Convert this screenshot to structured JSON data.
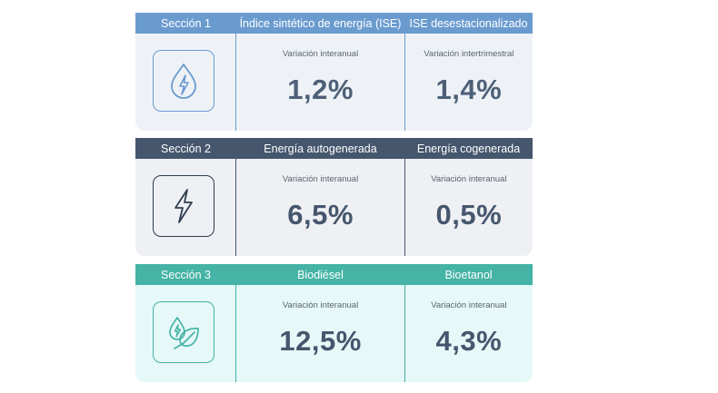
{
  "sections": [
    {
      "title": "Sección 1",
      "icon": "energy-drop-icon",
      "color": "#6a9bcf",
      "columns": [
        {
          "header": "Índice sintético de energía (ISE)",
          "label": "Variación interanual",
          "value": "1,2%"
        },
        {
          "header": "ISE desestacionalizado",
          "label": "Variación intertrimestral",
          "value": "1,4%"
        }
      ]
    },
    {
      "title": "Sección 2",
      "icon": "lightning-bolt-icon",
      "color": "#45566d",
      "columns": [
        {
          "header": "Energía autogenerada",
          "label": "Variación interanual",
          "value": "6,5%"
        },
        {
          "header": "Energía cogenerada",
          "label": "Variación interanual",
          "value": "0,5%"
        }
      ]
    },
    {
      "title": "Sección 3",
      "icon": "bioenergy-leaf-icon",
      "color": "#45b3a5",
      "columns": [
        {
          "header": "Biodiésel",
          "label": "Variación interanual",
          "value": "12,5%"
        },
        {
          "header": "Bioetanol",
          "label": "Variación interanual",
          "value": "4,3%"
        }
      ]
    }
  ]
}
